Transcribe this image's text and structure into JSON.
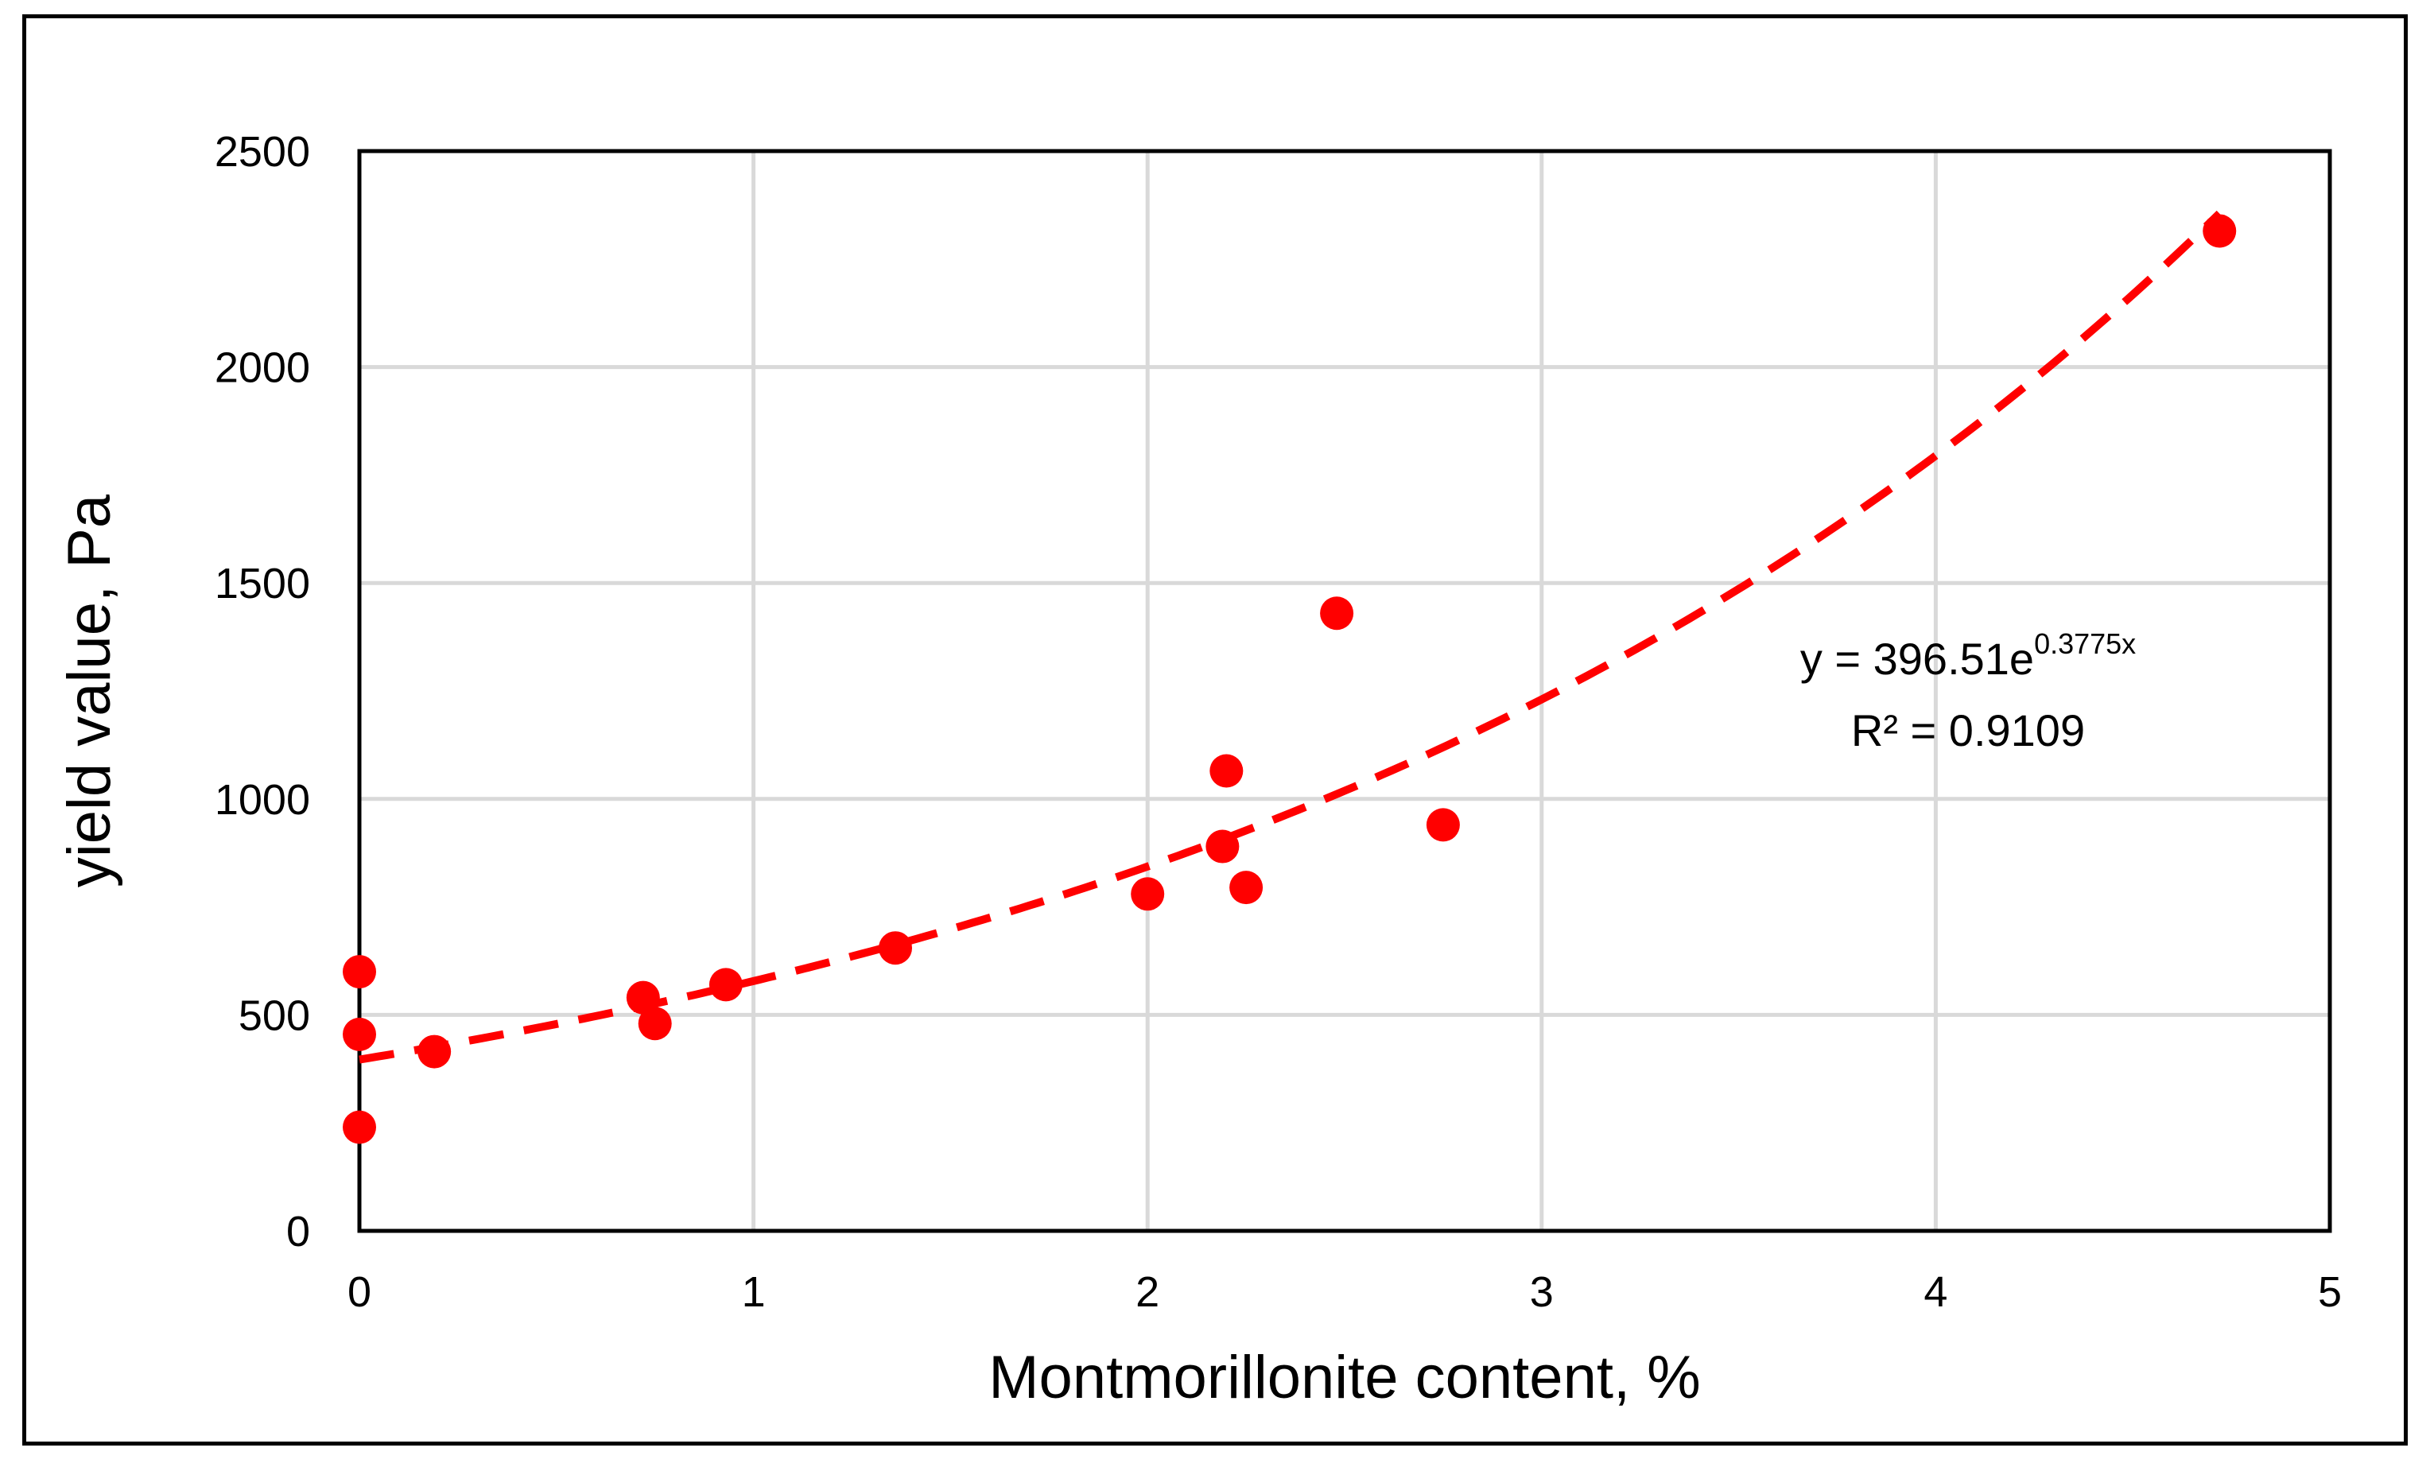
{
  "chart_data": {
    "type": "scatter",
    "xlabel": "Montmorillonite content, %",
    "ylabel": "yield value, Pa",
    "xlim": [
      0,
      5
    ],
    "ylim": [
      0,
      2500
    ],
    "x_ticks": [
      0,
      1,
      2,
      3,
      4,
      5
    ],
    "y_ticks": [
      0,
      500,
      1000,
      1500,
      2000,
      2500
    ],
    "grid": true,
    "marker_color": "#ff0000",
    "series": [
      {
        "points": [
          {
            "x": 0.0,
            "y": 600
          },
          {
            "x": 0.0,
            "y": 455
          },
          {
            "x": 0.0,
            "y": 240
          },
          {
            "x": 0.19,
            "y": 415
          },
          {
            "x": 0.72,
            "y": 540
          },
          {
            "x": 0.75,
            "y": 480
          },
          {
            "x": 0.93,
            "y": 570
          },
          {
            "x": 1.36,
            "y": 655
          },
          {
            "x": 2.0,
            "y": 780
          },
          {
            "x": 2.19,
            "y": 890
          },
          {
            "x": 2.2,
            "y": 1065
          },
          {
            "x": 2.25,
            "y": 795
          },
          {
            "x": 2.48,
            "y": 1430
          },
          {
            "x": 2.75,
            "y": 940
          },
          {
            "x": 4.72,
            "y": 2315
          }
        ]
      }
    ],
    "trendline": {
      "type": "exponential",
      "a": 396.51,
      "b": 0.3775,
      "x_range": [
        0,
        4.72
      ],
      "style": "dashed",
      "color": "#ff0000",
      "equation_main": "y = 396.51e",
      "equation_exponent": "0.3775x",
      "r_squared_label": "R² = 0.9109"
    }
  }
}
